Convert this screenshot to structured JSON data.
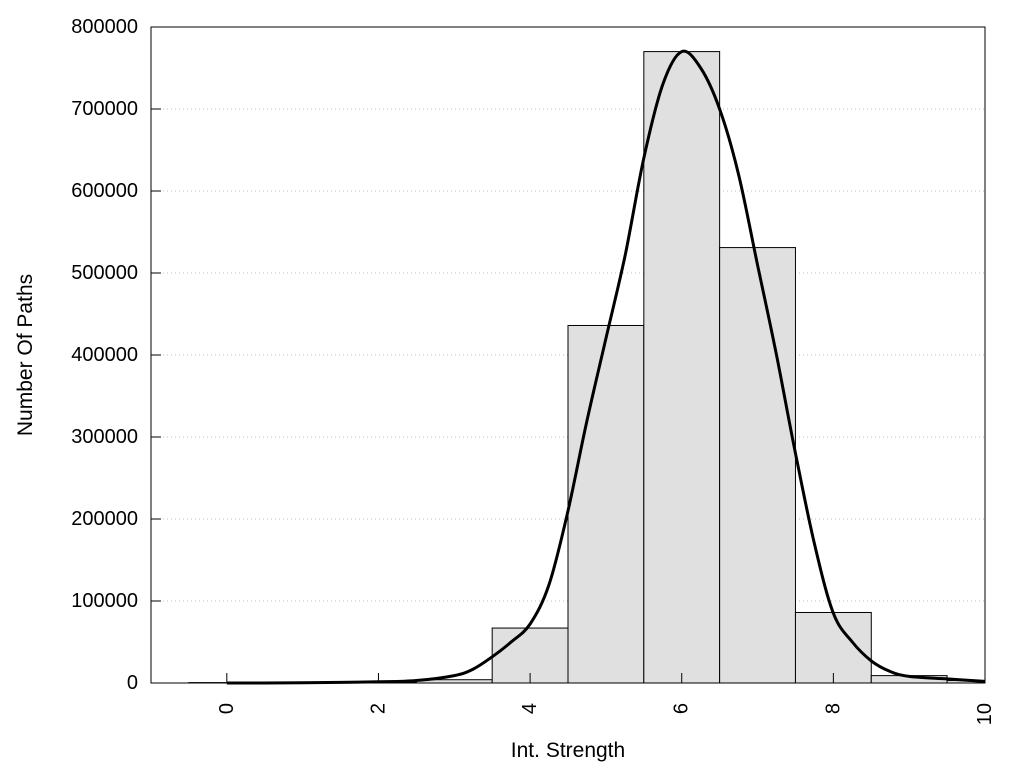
{
  "chart_data": {
    "type": "bar",
    "title": "",
    "xlabel": "Int. Strength",
    "ylabel": "Number Of Paths",
    "xlim": [
      -1,
      10
    ],
    "ylim": [
      0,
      800000
    ],
    "x_ticks": [
      0,
      2,
      4,
      6,
      8,
      10
    ],
    "x_tick_labels": [
      "0",
      "2",
      "4",
      "6",
      "8",
      "10"
    ],
    "y_ticks": [
      0,
      100000,
      200000,
      300000,
      400000,
      500000,
      600000,
      700000,
      800000
    ],
    "y_tick_labels": [
      "0",
      "100000",
      "200000",
      "300000",
      "400000",
      "500000",
      "600000",
      "700000",
      "800000"
    ],
    "grid": "horizontal dotted",
    "bar_fill": "#e0e0e0",
    "bar_stroke": "#000000",
    "bars": [
      {
        "x": 0,
        "value": 500
      },
      {
        "x": 1,
        "value": 500
      },
      {
        "x": 2,
        "value": 1000
      },
      {
        "x": 3,
        "value": 4000
      },
      {
        "x": 4,
        "value": 67000
      },
      {
        "x": 5,
        "value": 436000
      },
      {
        "x": 6,
        "value": 770000
      },
      {
        "x": 7,
        "value": 531000
      },
      {
        "x": 8,
        "value": 86000
      },
      {
        "x": 9,
        "value": 9000
      },
      {
        "x": 10,
        "value": 3000
      }
    ],
    "curve": {
      "x": [
        0,
        0.5,
        1,
        1.5,
        2,
        2.5,
        3,
        3.25,
        3.5,
        3.75,
        4,
        4.25,
        4.5,
        4.75,
        5,
        5.25,
        5.5,
        5.75,
        6,
        6.25,
        6.5,
        6.75,
        7,
        7.25,
        7.5,
        7.75,
        8,
        8.25,
        8.5,
        8.75,
        9,
        9.5,
        10
      ],
      "y": [
        0,
        0,
        300,
        700,
        1500,
        3000,
        9000,
        17000,
        32000,
        50000,
        72000,
        120000,
        210000,
        320000,
        420000,
        520000,
        640000,
        730000,
        770000,
        750000,
        700000,
        620000,
        510000,
        400000,
        280000,
        170000,
        85000,
        50000,
        27000,
        14000,
        8000,
        5000,
        2000
      ]
    }
  }
}
